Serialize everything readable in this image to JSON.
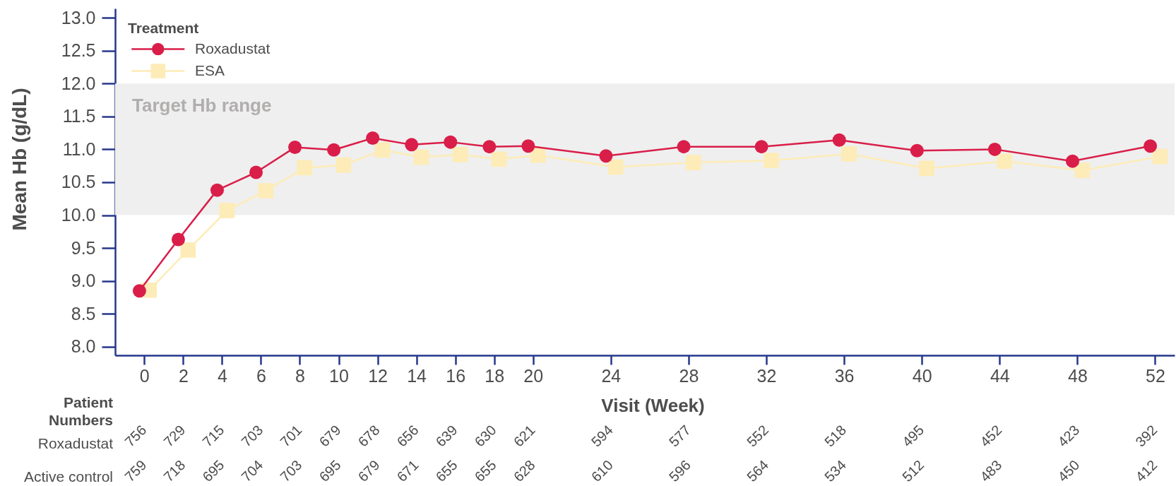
{
  "chart_data": {
    "type": "line",
    "xlabel": "Visit (Week)",
    "ylabel": "Mean Hb (g/dL)",
    "legend_title": "Treatment",
    "legend": "top left",
    "series": [
      {
        "name": "Roxadustat",
        "color": "#d91e49",
        "marker": "circle",
        "x": [
          -0.25,
          1.75,
          3.75,
          5.75,
          7.75,
          9.75,
          11.75,
          13.75,
          15.75,
          17.75,
          19.75,
          23.75,
          27.75,
          31.75,
          35.75,
          39.75,
          43.75,
          47.75,
          51.75
        ],
        "values": [
          8.85,
          9.63,
          10.38,
          10.65,
          11.03,
          10.99,
          11.17,
          11.07,
          11.11,
          11.04,
          11.05,
          10.9,
          11.04,
          11.04,
          11.14,
          10.98,
          11.0,
          10.82,
          11.05
        ]
      },
      {
        "name": "ESA",
        "color": "#fdecb7",
        "marker": "square",
        "x": [
          0.25,
          2.25,
          4.25,
          6.25,
          8.25,
          10.25,
          12.25,
          14.25,
          16.25,
          18.25,
          20.25,
          24.25,
          28.25,
          32.25,
          36.25,
          40.25,
          44.25,
          48.25,
          52.25
        ],
        "values": [
          8.86,
          9.47,
          10.07,
          10.37,
          10.72,
          10.76,
          10.99,
          10.88,
          10.92,
          10.85,
          10.91,
          10.73,
          10.8,
          10.83,
          10.93,
          10.71,
          10.82,
          10.68,
          10.89
        ]
      }
    ],
    "xlim": [
      -1.5,
      53
    ],
    "xticks": [
      0,
      2,
      4,
      6,
      8,
      10,
      12,
      14,
      16,
      18,
      20,
      24,
      28,
      32,
      36,
      40,
      44,
      48,
      52
    ],
    "ylim": [
      7.87,
      13.14
    ],
    "yticks": [
      {
        "value": 8,
        "label": "8.0"
      },
      8.5,
      {
        "value": 9,
        "label": "9.0"
      },
      9.5,
      {
        "value": 10,
        "label": "10.0"
      },
      10.5,
      {
        "value": 11,
        "label": "11.0"
      },
      11.5,
      {
        "value": 12,
        "label": "12.0"
      },
      12.5,
      {
        "value": 13,
        "label": "13.0"
      }
    ],
    "bands": [
      {
        "axis": "y",
        "from": 10,
        "to": 12,
        "label": "Target Hb range",
        "color": "#efefef"
      }
    ],
    "annotations": [
      "Patient Numbers",
      "Roxadustat",
      "756",
      "729",
      "715",
      "703",
      "701",
      "679",
      "678",
      "656",
      "639",
      "630",
      "621",
      "594",
      "577",
      "552",
      "518",
      "495",
      "452",
      "423",
      "392",
      "Active control",
      "759",
      "718",
      "695",
      "704",
      "703",
      "695",
      "679",
      "671",
      "655",
      "655",
      "628",
      "610",
      "596",
      "564",
      "534",
      "512",
      "483",
      "450",
      "412"
    ]
  }
}
